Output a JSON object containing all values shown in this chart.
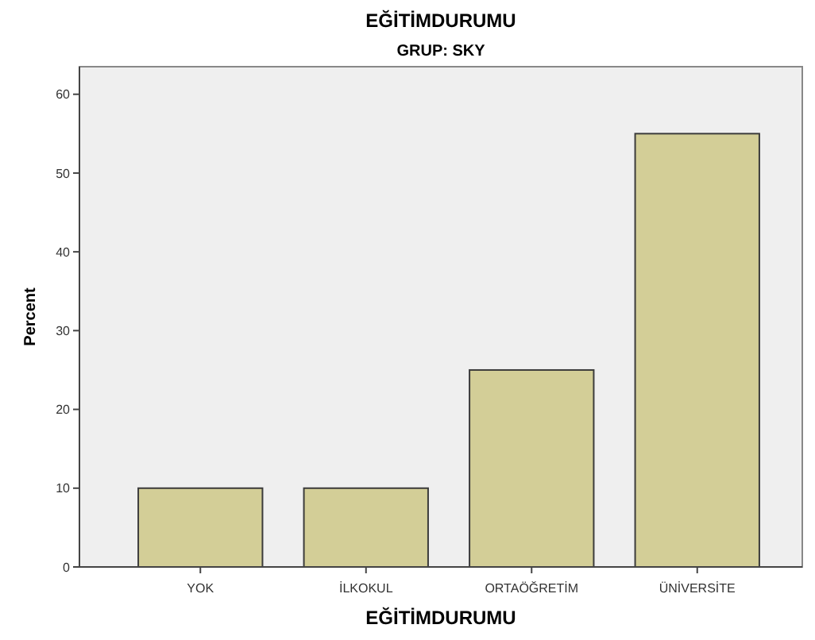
{
  "chart_data": {
    "type": "bar",
    "title": "EĞİTİMDURUMU",
    "subtitle": "GRUP: SKY",
    "xlabel": "EĞİTİMDURUMU",
    "ylabel": "Percent",
    "categories": [
      "YOK",
      "İLKOKUL",
      "ORTAÖĞRETİM",
      "ÜNİVERSİTE"
    ],
    "values": [
      10,
      10,
      25,
      55
    ],
    "color": "#d3ce97",
    "ylim": [
      0,
      63.5
    ],
    "yticks": [
      0,
      10,
      20,
      30,
      40,
      50,
      60
    ],
    "grid": false
  }
}
